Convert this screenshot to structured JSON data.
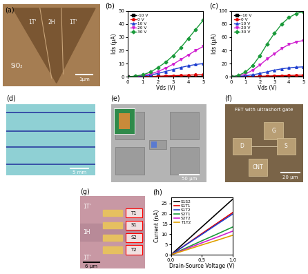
{
  "chart_data": [
    {
      "panel": "(b)",
      "type": "line",
      "xlabel": "Vds (V)",
      "ylabel": "Ids (μA)",
      "x": [
        0,
        0.5,
        1,
        1.5,
        2,
        2.5,
        3,
        3.5,
        4,
        4.5,
        5
      ],
      "series": [
        {
          "name": "-10 V",
          "color": "#000000",
          "marker": "square",
          "values": [
            0,
            0,
            0.02,
            0.05,
            0.08,
            0.1,
            0.15,
            0.2,
            0.25,
            0.3,
            0.35
          ]
        },
        {
          "name": "0 V",
          "color": "#e00000",
          "marker": "circle",
          "values": [
            0,
            0.05,
            0.1,
            0.2,
            0.4,
            0.6,
            0.8,
            1,
            1.2,
            1.4,
            1.5
          ]
        },
        {
          "name": "10 V",
          "color": "#1f3fd0",
          "marker": "triangle_up",
          "values": [
            0,
            0.2,
            0.6,
            1.3,
            2.5,
            4,
            5.5,
            7,
            8.3,
            9.3,
            10
          ]
        },
        {
          "name": "20 V",
          "color": "#d020d0",
          "marker": "triangle_down",
          "values": [
            0,
            0.3,
            1,
            2,
            4,
            6.5,
            9.5,
            13,
            16.5,
            20,
            23
          ]
        },
        {
          "name": "30 V",
          "color": "#1a9a3a",
          "marker": "diamond",
          "values": [
            0,
            0.5,
            1.5,
            3.5,
            7,
            11,
            16,
            22,
            29,
            36,
            43
          ]
        }
      ],
      "xlim": [
        0,
        5
      ],
      "xticks": [
        0,
        1,
        2,
        3,
        4,
        5
      ],
      "ylim": [
        0,
        50
      ],
      "yticks": [
        0,
        10,
        20,
        30,
        40,
        50
      ],
      "legend": "upper left"
    },
    {
      "panel": "(c)",
      "type": "line",
      "xlabel": "Vds (V)",
      "ylabel": "Ids (μA)",
      "x": [
        0,
        0.5,
        1,
        1.5,
        2,
        2.5,
        3,
        3.5,
        4,
        4.5,
        5
      ],
      "series": [
        {
          "name": "-10 V",
          "color": "#000000",
          "marker": "square",
          "values": [
            0,
            0,
            0.05,
            0.1,
            0.15,
            0.2,
            0.3,
            0.4,
            0.45,
            0.5,
            0.5
          ]
        },
        {
          "name": "0 V",
          "color": "#e00000",
          "marker": "circle",
          "values": [
            0,
            0.1,
            0.3,
            0.5,
            0.8,
            1.1,
            1.4,
            1.7,
            2,
            2.2,
            2.4
          ]
        },
        {
          "name": "10 V",
          "color": "#1f3fd0",
          "marker": "triangle_up",
          "values": [
            0,
            0.5,
            1.5,
            3,
            5,
            7.5,
            10,
            12,
            13.5,
            14.5,
            15
          ]
        },
        {
          "name": "20 V",
          "color": "#d020d0",
          "marker": "triangle_down",
          "values": [
            0,
            1,
            4,
            10,
            18,
            27,
            35,
            43,
            49,
            53,
            55
          ]
        },
        {
          "name": "30 V",
          "color": "#1a9a3a",
          "marker": "diamond",
          "values": [
            0,
            2,
            7,
            17,
            32,
            50,
            66,
            80,
            90,
            96,
            99
          ]
        }
      ],
      "xlim": [
        0,
        5
      ],
      "xticks": [
        0,
        1,
        2,
        3,
        4,
        5
      ],
      "ylim": [
        0,
        100
      ],
      "yticks": [
        0,
        20,
        40,
        60,
        80,
        100
      ],
      "legend": "upper left"
    },
    {
      "panel": "(h)",
      "type": "line",
      "xlabel": "Drain-Source Voltage (V)",
      "ylabel": "Current (nA)",
      "x": [
        0.0,
        0.25,
        0.5,
        0.75,
        1.0
      ],
      "series": [
        {
          "name": "S1S2",
          "color": "#000000",
          "values": [
            0,
            6.75,
            13.5,
            20.25,
            27
          ]
        },
        {
          "name": "S1T1",
          "color": "#e00000",
          "values": [
            0,
            5.1,
            10.3,
            15.4,
            20.5
          ]
        },
        {
          "name": "S1T2",
          "color": "#1f3fd0",
          "values": [
            0,
            5,
            9.9,
            14.9,
            19.8
          ]
        },
        {
          "name": "S2T1",
          "color": "#1a9a3a",
          "values": [
            0,
            3.4,
            6.8,
            10.1,
            13.5
          ]
        },
        {
          "name": "S2T2",
          "color": "#d020d0",
          "values": [
            0,
            2.9,
            5.8,
            8.6,
            11.5
          ]
        },
        {
          "name": "T1T2",
          "color": "#e0a000",
          "values": [
            0,
            2.4,
            4.8,
            7.1,
            9.5
          ]
        }
      ],
      "xlim": [
        0.0,
        1.0
      ],
      "xticks": [
        0.0,
        0.5,
        1.0
      ],
      "ylim": [
        0,
        28
      ],
      "yticks": [
        0,
        5,
        10,
        15,
        20,
        25
      ],
      "legend": "upper left"
    }
  ],
  "images": {
    "a": {
      "panel": "(a)",
      "regions": [
        "1T'",
        "2H",
        "1T'"
      ],
      "substrate": "SiO₂",
      "scale_bar": "1μm"
    },
    "d": {
      "panel": "(d)",
      "scale_bar": "5 mm"
    },
    "e": {
      "panel": "(e)",
      "scale_bar": "50 μm"
    },
    "f": {
      "panel": "(f)",
      "caption": "FET with ultrashort gate",
      "pads": [
        "G",
        "D",
        "S",
        "CNT"
      ],
      "scale_bar": "20 μm"
    },
    "g": {
      "panel": "(g)",
      "regions": [
        "1T'",
        "1H",
        "1T'"
      ],
      "contacts": [
        "T1",
        "S1",
        "S2",
        "T2"
      ],
      "scale_bar": "6 μm"
    }
  }
}
